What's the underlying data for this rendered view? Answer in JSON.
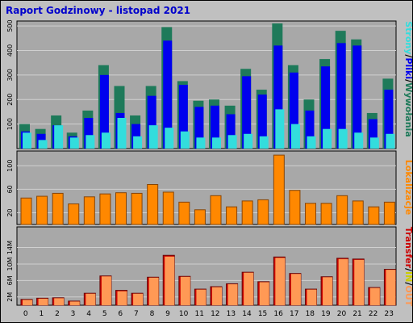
{
  "title": "Raport Godzinowy -  listopad 2021",
  "colors": {
    "frame_bg": "#c0c0c0",
    "plot_bg": "#a8a8a8",
    "grid": "#d0d0d0",
    "title": "#0000cc",
    "strony": "#1e7a5a",
    "pliki": "#0000ee",
    "wywolania": "#33dddd",
    "lokalizacje": "#ff8800",
    "transfer_in": "#cc0000",
    "transfer_out": "#ff9955"
  },
  "chart_data": [
    {
      "type": "bar",
      "id": "hits",
      "categories": [
        "0",
        "1",
        "2",
        "3",
        "4",
        "5",
        "6",
        "7",
        "8",
        "9",
        "10",
        "11",
        "12",
        "13",
        "14",
        "15",
        "16",
        "17",
        "18",
        "19",
        "20",
        "21",
        "22",
        "23"
      ],
      "ytick_labels": [
        "100",
        "200",
        "300",
        "400",
        "500"
      ],
      "ylim": [
        0,
        520
      ],
      "legend": [
        "Strony",
        "/",
        "Pliki",
        "/",
        "Wywołania"
      ],
      "series": [
        {
          "name": "Strony",
          "values": [
            100,
            80,
            135,
            65,
            155,
            340,
            255,
            135,
            255,
            495,
            275,
            195,
            200,
            175,
            325,
            240,
            510,
            340,
            200,
            365,
            480,
            445,
            145,
            285
          ]
        },
        {
          "name": "Pliki",
          "values": [
            70,
            60,
            95,
            50,
            125,
            300,
            145,
            100,
            215,
            440,
            260,
            170,
            175,
            140,
            295,
            220,
            420,
            310,
            155,
            335,
            430,
            420,
            120,
            240
          ]
        },
        {
          "name": "Wywołania",
          "values": [
            65,
            35,
            95,
            45,
            55,
            65,
            125,
            50,
            95,
            85,
            70,
            45,
            45,
            55,
            60,
            50,
            160,
            100,
            50,
            80,
            80,
            65,
            45,
            60
          ]
        }
      ]
    },
    {
      "type": "bar",
      "id": "lokalizacje",
      "categories": [
        "0",
        "1",
        "2",
        "3",
        "4",
        "5",
        "6",
        "7",
        "8",
        "9",
        "10",
        "11",
        "12",
        "13",
        "14",
        "15",
        "16",
        "17",
        "18",
        "19",
        "20",
        "21",
        "22",
        "23"
      ],
      "ytick_labels": [
        "20",
        "60",
        "100"
      ],
      "ylim": [
        0,
        125
      ],
      "legend": [
        "Lokalizacje"
      ],
      "series": [
        {
          "name": "Lokalizacje",
          "values": [
            45,
            48,
            53,
            35,
            47,
            52,
            54,
            53,
            68,
            55,
            38,
            25,
            49,
            30,
            40,
            42,
            118,
            58,
            36,
            36,
            49,
            40,
            30,
            38
          ]
        }
      ]
    },
    {
      "type": "bar",
      "id": "transfer",
      "categories": [
        "0",
        "1",
        "2",
        "3",
        "4",
        "5",
        "6",
        "7",
        "8",
        "9",
        "10",
        "11",
        "12",
        "13",
        "14",
        "15",
        "16",
        "17",
        "18",
        "19",
        "20",
        "21",
        "22",
        "23"
      ],
      "ytick_labels": [
        "2M",
        "6M",
        "10M",
        "14M"
      ],
      "ylim": [
        0,
        19
      ],
      "legend": [
        "Transfer",
        "/",
        "IN",
        "/",
        "OUT"
      ],
      "series": [
        {
          "name": "IN",
          "values": [
            1.4,
            1.7,
            1.8,
            1.0,
            2.9,
            7.1,
            3.6,
            2.9,
            6.8,
            12.1,
            7.0,
            3.9,
            4.5,
            5.2,
            8.0,
            5.7,
            11.7,
            7.7,
            3.9,
            6.9,
            11.4,
            11.2,
            4.3,
            8.7
          ]
        },
        {
          "name": "OUT",
          "values": [
            1.3,
            1.6,
            1.7,
            0.9,
            2.8,
            7.0,
            3.4,
            2.8,
            6.7,
            11.8,
            6.9,
            3.8,
            4.4,
            5.1,
            7.9,
            5.6,
            11.5,
            7.6,
            3.8,
            6.8,
            11.2,
            11.0,
            4.2,
            8.6
          ]
        }
      ]
    }
  ]
}
